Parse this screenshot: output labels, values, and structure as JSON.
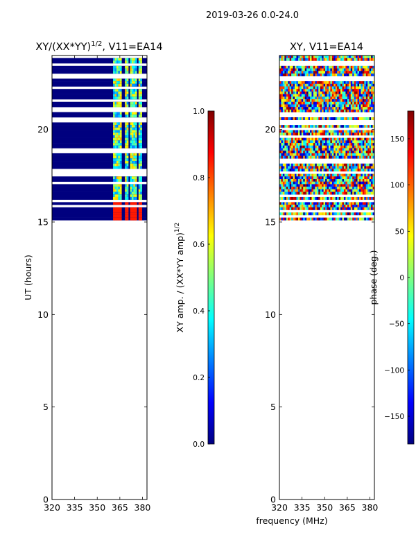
{
  "figure_title": "2019-03-26 0.0-24.0",
  "colors": {
    "jet": [
      "#00007f",
      "#0000ff",
      "#007fff",
      "#00ffff",
      "#7fff7f",
      "#ffff00",
      "#ff7f00",
      "#ff0000",
      "#7f0000"
    ],
    "frame": "#000000",
    "background": "#ffffff"
  },
  "chart_data": [
    {
      "type": "heatmap",
      "title": "XY/(XX*YY)",
      "title_superscript": "1/2",
      "title_suffix": ", V11=EA14",
      "xlabel": "",
      "ylabel": "UT (hours)",
      "xlim": [
        320,
        383
      ],
      "ylim": [
        0,
        24
      ],
      "x_ticks": [
        "320",
        "335",
        "350",
        "365",
        "380"
      ],
      "y_ticks": [
        "0",
        "5",
        "10",
        "15",
        "20"
      ],
      "x_tick_values": [
        320,
        335,
        350,
        365,
        380
      ],
      "y_tick_values": [
        0,
        5,
        10,
        15,
        20
      ],
      "data_start_hour": 15.1,
      "colorbar": {
        "label": "XY amp. / (XX*YY amp)",
        "label_superscript": "1/2",
        "range": [
          0.0,
          1.0
        ],
        "ticks": [
          "0.0",
          "0.2",
          "0.4",
          "0.6",
          "0.8",
          "1.0"
        ],
        "tick_values": [
          0.0,
          0.2,
          0.4,
          0.6,
          0.8,
          1.0
        ]
      }
    },
    {
      "type": "heatmap",
      "title": "XY, V11=EA14",
      "xlabel": "frequency (MHz)",
      "ylabel": "",
      "xlim": [
        320,
        383
      ],
      "ylim": [
        0,
        24
      ],
      "x_ticks": [
        "320",
        "335",
        "350",
        "365",
        "380"
      ],
      "y_ticks": [
        "0",
        "5",
        "10",
        "15",
        "20"
      ],
      "x_tick_values": [
        320,
        335,
        350,
        365,
        380
      ],
      "y_tick_values": [
        0,
        5,
        10,
        15,
        20
      ],
      "data_start_hour": 15.1,
      "colorbar": {
        "label": "phase (deg.)",
        "range": [
          -180,
          180
        ],
        "ticks": [
          "150",
          "100",
          "50",
          "0",
          "−50",
          "−100",
          "−150"
        ],
        "tick_values": [
          150,
          100,
          50,
          0,
          -50,
          -100,
          -150
        ]
      }
    }
  ]
}
